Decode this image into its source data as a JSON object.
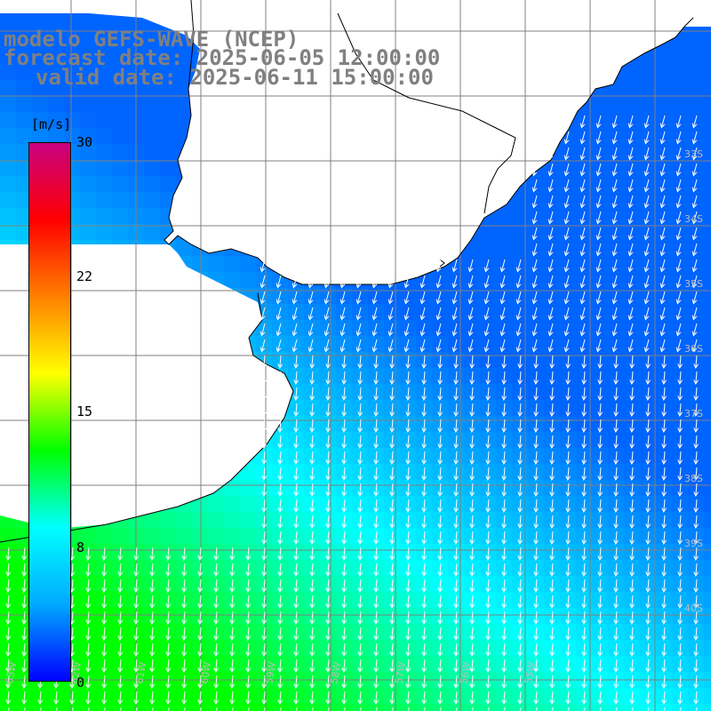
{
  "title": {
    "line1": "modelo GEFS-WAVE (NCEP)",
    "line2": "forecast date: 2025-06-05 12:00:00",
    "line3": "valid date: 2025-06-11 15:00:00"
  },
  "colorbar": {
    "unit": "[m/s]",
    "ticks": [
      "30",
      "22",
      "15",
      "8",
      "0"
    ],
    "tick_values": [
      30,
      22,
      15,
      8,
      0
    ],
    "range": [
      0,
      30
    ],
    "colors": [
      "#0000ff",
      "#00aaff",
      "#00ffff",
      "#00ff00",
      "#ffff00",
      "#ff8000",
      "#ff0000",
      "#c80080"
    ]
  },
  "map": {
    "lat_labels": [
      "33S",
      "34S",
      "35S",
      "36S",
      "37S",
      "38S",
      "39S",
      "40S"
    ],
    "lon_labels": [
      "63W",
      "62W",
      "61W",
      "60W",
      "59W",
      "58W",
      "57W",
      "56W",
      "55W"
    ],
    "land_color": "#ffffff",
    "coast_color": "#000000",
    "grid_color": "#808080",
    "arrow_color": "#ffffff"
  }
}
